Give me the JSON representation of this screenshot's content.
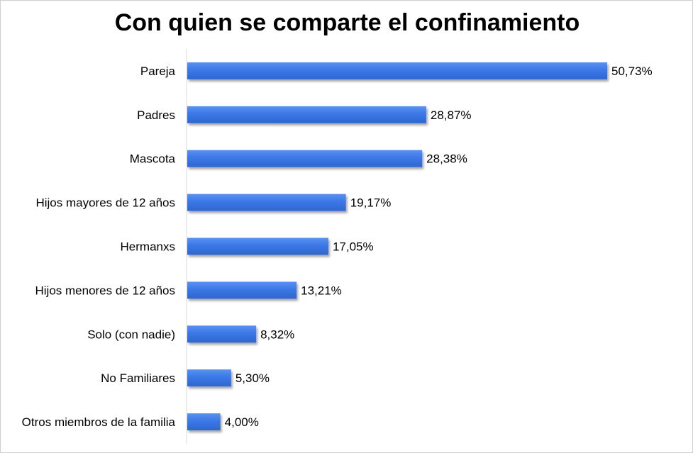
{
  "chart_data": {
    "type": "bar",
    "orientation": "horizontal",
    "title": "Con quien se comparte el confinamiento",
    "categories": [
      "Pareja",
      "Padres",
      "Mascota",
      "Hijos mayores de 12 años",
      "Hermanxs",
      "Hijos menores de 12 años",
      "Solo (con nadie)",
      "No Familiares",
      "Otros miembros de la familia"
    ],
    "values": [
      50.73,
      28.87,
      28.38,
      19.17,
      17.05,
      13.21,
      8.32,
      5.3,
      4.0
    ],
    "data_labels": [
      "50,73%",
      "28,87%",
      "28,38%",
      "19,17%",
      "17,05%",
      "13,21%",
      "8,32%",
      "5,30%",
      "4,00%"
    ],
    "unit": "%",
    "xlim": [
      0,
      55
    ],
    "grid": false,
    "legend": false,
    "bar_color": "#3B78E7",
    "axis_color": "#d9d9d9"
  }
}
